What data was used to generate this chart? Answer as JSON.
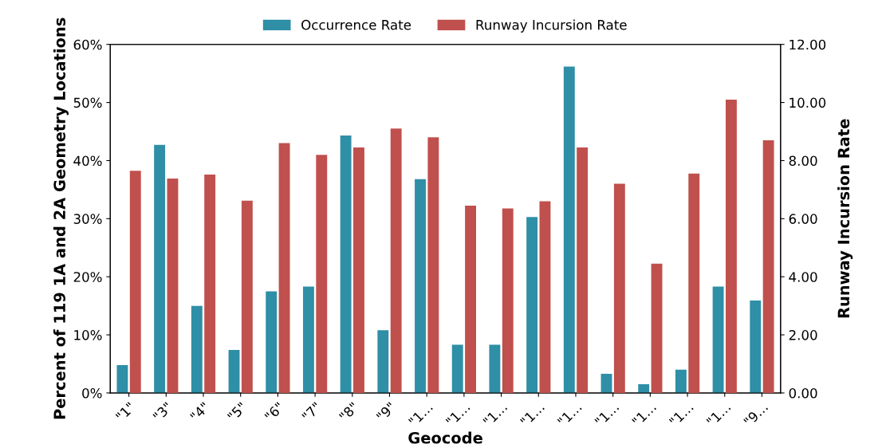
{
  "chart_data": {
    "type": "bar",
    "xlabel": "Geocode",
    "ylabel": "Percent of 119 1A and 2A Geometry Locations",
    "y2label": "Runway Incursion Rate",
    "categories": [
      "\"1\"",
      "\"3\"",
      "\"4\"",
      "\"5\"",
      "\"6\"",
      "\"7\"",
      "\"8\"",
      "\"9\"",
      "\"1…",
      "\"1…",
      "\"1…",
      "\"1…",
      "\"1…",
      "\"1…",
      "\"1…",
      "\"1…",
      "\"1…",
      "\"9…"
    ],
    "series": [
      {
        "name": "Occurrence Rate",
        "color": "#2e8fa6",
        "values": [
          4.8,
          42.7,
          15.0,
          7.4,
          17.5,
          18.3,
          44.3,
          10.8,
          36.8,
          8.3,
          8.3,
          30.3,
          56.2,
          3.3,
          1.5,
          4.0,
          18.3,
          15.9
        ]
      },
      {
        "name": "Runway Incursion Rate",
        "color": "#c0504d",
        "axis": "y2",
        "values": [
          7.65,
          7.38,
          7.52,
          6.62,
          8.6,
          8.2,
          8.45,
          9.1,
          8.8,
          6.45,
          6.35,
          6.6,
          8.45,
          7.2,
          4.45,
          7.55,
          10.1,
          8.7
        ]
      }
    ],
    "ylim": [
      0,
      60
    ],
    "yticks": [
      {
        "value": 0,
        "label": "0%"
      },
      {
        "value": 10,
        "label": "10%"
      },
      {
        "value": 20,
        "label": "20%"
      },
      {
        "value": 30,
        "label": "30%"
      },
      {
        "value": 40,
        "label": "40%"
      },
      {
        "value": 50,
        "label": "50%"
      },
      {
        "value": 60,
        "label": "60%"
      }
    ],
    "y2lim": [
      0,
      12
    ],
    "y2ticks": [
      {
        "value": 0,
        "label": "0.00"
      },
      {
        "value": 2,
        "label": "2.00"
      },
      {
        "value": 4,
        "label": "4.00"
      },
      {
        "value": 6,
        "label": "6.00"
      },
      {
        "value": 8,
        "label": "8.00"
      },
      {
        "value": 10,
        "label": "10.00"
      },
      {
        "value": 12,
        "label": "12.00"
      }
    ],
    "legend": "top",
    "grid": false
  }
}
